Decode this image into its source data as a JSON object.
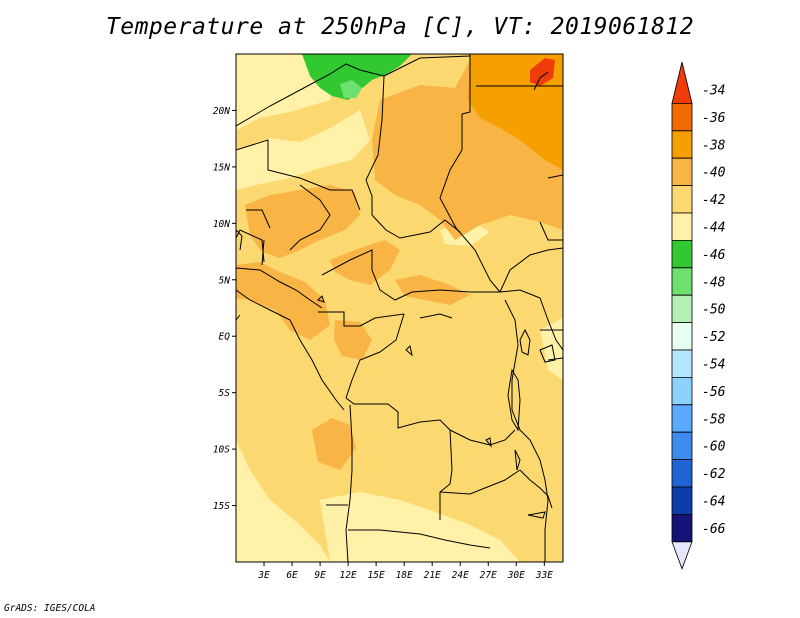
{
  "title": "Temperature at 250hPa [C], VT: 2019061812",
  "credit": "GrADS: IGES/COLA",
  "map": {
    "lon_range": [
      0,
      35
    ],
    "lat_range": [
      -20,
      25
    ],
    "lat_ticks": [
      {
        "value": 20,
        "label": "20N"
      },
      {
        "value": 15,
        "label": "15N"
      },
      {
        "value": 10,
        "label": "10N"
      },
      {
        "value": 5,
        "label": "5N"
      },
      {
        "value": 0,
        "label": "EQ"
      },
      {
        "value": -5,
        "label": "5S"
      },
      {
        "value": -10,
        "label": "10S"
      },
      {
        "value": -15,
        "label": "15S"
      }
    ],
    "lon_ticks": [
      {
        "value": 3,
        "label": "3E"
      },
      {
        "value": 6,
        "label": "6E"
      },
      {
        "value": 9,
        "label": "9E"
      },
      {
        "value": 12,
        "label": "12E"
      },
      {
        "value": 15,
        "label": "15E"
      },
      {
        "value": 18,
        "label": "18E"
      },
      {
        "value": 21,
        "label": "21E"
      },
      {
        "value": 24,
        "label": "24E"
      },
      {
        "value": 27,
        "label": "27E"
      },
      {
        "value": 30,
        "label": "30E"
      },
      {
        "value": 33,
        "label": "33E"
      }
    ]
  },
  "colorbar": {
    "levels": [
      "-34",
      "-36",
      "-38",
      "-40",
      "-42",
      "-44",
      "-46",
      "-48",
      "-50",
      "-52",
      "-54",
      "-56",
      "-58",
      "-60",
      "-62",
      "-64",
      "-66"
    ],
    "colors": [
      "#f03c0a",
      "#f06a00",
      "#f5a000",
      "#f8b444",
      "#fcd870",
      "#fff2a8",
      "#32c832",
      "#6ee06e",
      "#b4f0b4",
      "#e6fff0",
      "#b4e6ff",
      "#8cd2ff",
      "#5aaaff",
      "#3c8cf0",
      "#1e64d2",
      "#0a3caa",
      "#141478",
      "#e6e6ff"
    ]
  },
  "field_colors": {
    "c36": "#f5a000",
    "c38": "#f8b444",
    "c40": "#fcd870",
    "c42": "#fff2a8",
    "c44": "#32c832",
    "c46": "#6ee06e",
    "c34": "#f03c0a"
  }
}
